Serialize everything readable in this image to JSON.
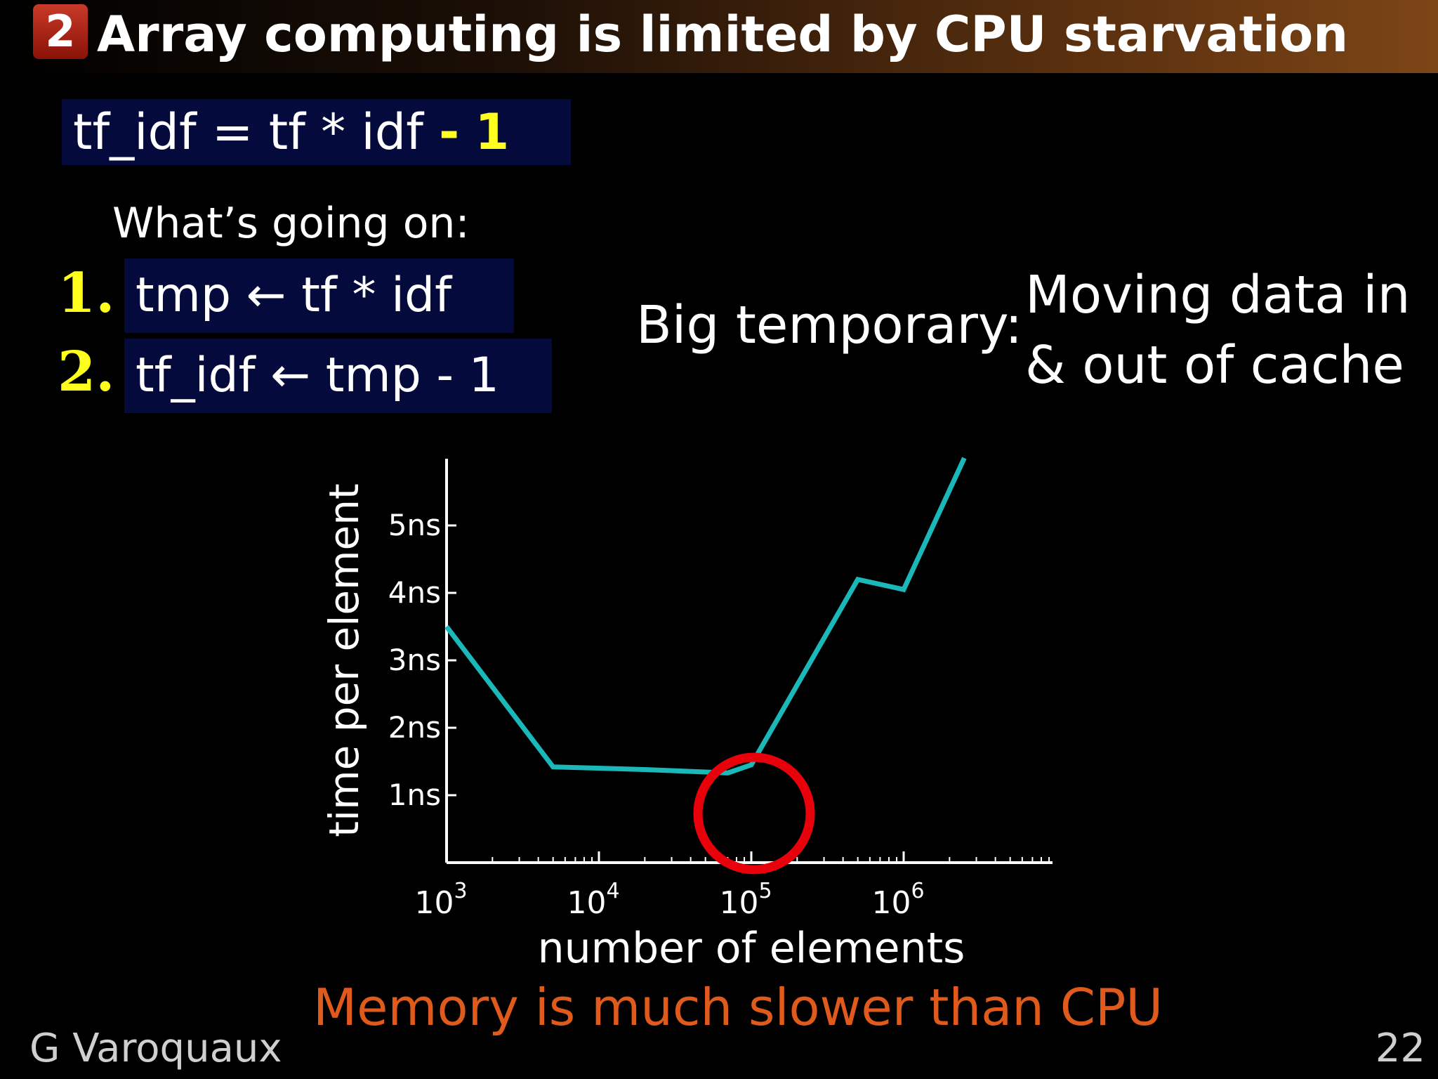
{
  "header": {
    "slide_number": "2",
    "title": "Array computing is limited by CPU starvation"
  },
  "formula": {
    "lhs": "tf_idf = tf * idf",
    "minus": "-",
    "one": "1"
  },
  "explanation": {
    "intro": "What’s going on:",
    "steps": [
      {
        "num": "1.",
        "text": "tmp ← tf * idf"
      },
      {
        "num": "2.",
        "text": "tf_idf ← tmp - 1"
      }
    ],
    "big_temporary": "Big temporary:",
    "moving_data": [
      "Moving data in",
      "& out of cache"
    ]
  },
  "colors": {
    "accent_yellow": "#ffff1e",
    "code_box_bg": "#050a3c",
    "series_line": "#1ab8b8",
    "highlight_circle": "#e8000a",
    "subtitle_orange": "#e05a1c"
  },
  "chart_data": {
    "type": "line",
    "xlabel": "number of elements",
    "ylabel": "time per element",
    "x_scale": "log",
    "xlim": [
      1000,
      10000000
    ],
    "ylim": [
      0,
      6
    ],
    "x_ticks": [
      {
        "base": "10",
        "exp": "3",
        "value": 1000
      },
      {
        "base": "10",
        "exp": "4",
        "value": 10000
      },
      {
        "base": "10",
        "exp": "5",
        "value": 100000
      },
      {
        "base": "10",
        "exp": "6",
        "value": 1000000
      }
    ],
    "y_ticks": [
      {
        "label": "1ns",
        "value": 1
      },
      {
        "label": "2ns",
        "value": 2
      },
      {
        "label": "3ns",
        "value": 3
      },
      {
        "label": "4ns",
        "value": 4
      },
      {
        "label": "5ns",
        "value": 5
      }
    ],
    "series": [
      {
        "x": [
          1000,
          5000,
          20000,
          70000,
          100000,
          500000,
          1000000,
          2500000
        ],
        "y": [
          3.5,
          1.42,
          1.38,
          1.33,
          1.45,
          4.2,
          4.05,
          6.0
        ]
      }
    ],
    "highlight": {
      "x": 100000,
      "y": 0.75,
      "shape": "circle"
    },
    "grid": false
  },
  "footer": {
    "subtitle": "Memory is much slower than CPU",
    "author": "G Varoquaux",
    "page": "22"
  }
}
